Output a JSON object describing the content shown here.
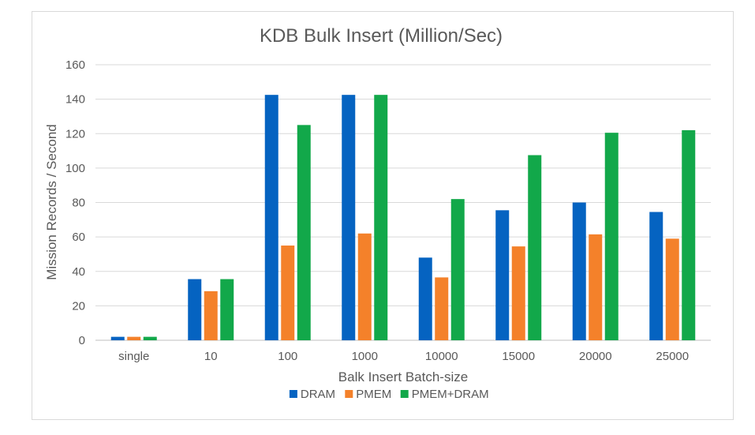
{
  "chart_data": {
    "type": "bar",
    "title": "KDB Bulk Insert (Million/Sec)",
    "xlabel": "Balk Insert Batch-size",
    "ylabel": "Mission Records / Second",
    "categories": [
      "single",
      "10",
      "100",
      "1000",
      "10000",
      "15000",
      "20000",
      "25000"
    ],
    "ylim": [
      0,
      160
    ],
    "yticks": [
      0,
      20,
      40,
      60,
      80,
      100,
      120,
      140,
      160
    ],
    "grid": true,
    "legend_position": "bottom",
    "series": [
      {
        "name": "DRAM",
        "color": "#0563C1",
        "values": [
          2,
          35.5,
          142.5,
          142.5,
          48,
          75.5,
          80,
          74.5
        ]
      },
      {
        "name": "PMEM",
        "color": "#F4812A",
        "values": [
          2,
          28.5,
          55,
          62,
          36.5,
          54.5,
          61.5,
          59
        ]
      },
      {
        "name": "PMEM+DRAM",
        "color": "#12A84A",
        "values": [
          2,
          35.5,
          125,
          142.5,
          82,
          107.5,
          120.5,
          122
        ]
      }
    ]
  }
}
